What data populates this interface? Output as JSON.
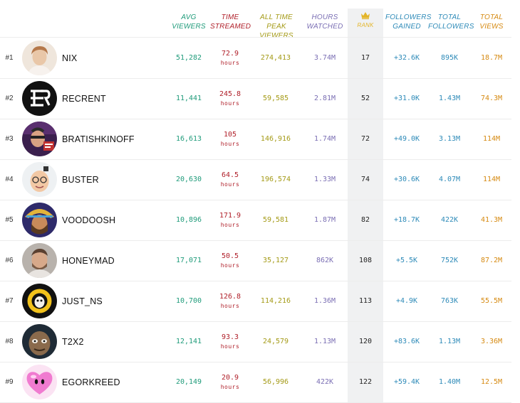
{
  "colors": {
    "avg_viewers": "#1f9b7a",
    "time_streamed": "#b0202a",
    "peak_viewers": "#a49a16",
    "hours_watched": "#7b6fb4",
    "rank": "#e3b528",
    "followers": "#2d8ab8",
    "total_views": "#d68a12"
  },
  "headers": {
    "avg_viewers": [
      "AVG",
      "VIEWERS"
    ],
    "time_streamed": [
      "TIME",
      "STREAMED"
    ],
    "peak_viewers": [
      "ALL TIME PEAK",
      "VIEWERS"
    ],
    "hours_watched": [
      "HOURS",
      "WATCHED"
    ],
    "rank_icon": "crown-icon",
    "rank": "RANK",
    "followers_gained": [
      "FOLLOWERS",
      "GAINED"
    ],
    "total_followers": [
      "TOTAL",
      "FOLLOWERS"
    ],
    "total_views": [
      "TOTAL",
      "VIEWS"
    ]
  },
  "rows": [
    {
      "pos": "#1",
      "name": "NIX",
      "avg": "51,282",
      "time": "72.9",
      "unit": "hours",
      "peak": "274,413",
      "hours": "3.74M",
      "rank": "17",
      "fgain": "+32.6K",
      "ftot": "895K",
      "views": "18.7M"
    },
    {
      "pos": "#2",
      "name": "RECRENT",
      "avg": "11,441",
      "time": "245.8",
      "unit": "hours",
      "peak": "59,585",
      "hours": "2.81M",
      "rank": "52",
      "fgain": "+31.0K",
      "ftot": "1.43M",
      "views": "74.3M"
    },
    {
      "pos": "#3",
      "name": "BRATISHKINOFF",
      "avg": "16,613",
      "time": "105",
      "unit": "hours",
      "peak": "146,916",
      "hours": "1.74M",
      "rank": "72",
      "fgain": "+49.0K",
      "ftot": "3.13M",
      "views": "114M"
    },
    {
      "pos": "#4",
      "name": "BUSTER",
      "avg": "20,630",
      "time": "64.5",
      "unit": "hours",
      "peak": "196,574",
      "hours": "1.33M",
      "rank": "74",
      "fgain": "+30.6K",
      "ftot": "4.07M",
      "views": "114M"
    },
    {
      "pos": "#5",
      "name": "VOODOOSH",
      "avg": "10,896",
      "time": "171.9",
      "unit": "hours",
      "peak": "59,581",
      "hours": "1.87M",
      "rank": "82",
      "fgain": "+18.7K",
      "ftot": "422K",
      "views": "41.3M"
    },
    {
      "pos": "#6",
      "name": "HONEYMAD",
      "avg": "17,071",
      "time": "50.5",
      "unit": "hours",
      "peak": "35,127",
      "hours": "862K",
      "rank": "108",
      "fgain": "+5.5K",
      "ftot": "752K",
      "views": "87.2M"
    },
    {
      "pos": "#7",
      "name": "JUST_NS",
      "avg": "10,700",
      "time": "126.8",
      "unit": "hours",
      "peak": "114,216",
      "hours": "1.36M",
      "rank": "113",
      "fgain": "+4.9K",
      "ftot": "763K",
      "views": "55.5M"
    },
    {
      "pos": "#8",
      "name": "T2X2",
      "avg": "12,141",
      "time": "93.3",
      "unit": "hours",
      "peak": "24,579",
      "hours": "1.13M",
      "rank": "120",
      "fgain": "+83.6K",
      "ftot": "1.13M",
      "views": "3.36M"
    },
    {
      "pos": "#9",
      "name": "EGORKREED",
      "avg": "20,149",
      "time": "20.9",
      "unit": "hours",
      "peak": "56,996",
      "hours": "422K",
      "rank": "122",
      "fgain": "+59.4K",
      "ftot": "1.40M",
      "views": "12.5M"
    }
  ]
}
